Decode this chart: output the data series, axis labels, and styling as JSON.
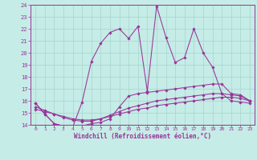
{
  "xlabel": "Windchill (Refroidissement éolien,°C)",
  "xlim": [
    -0.5,
    23.5
  ],
  "ylim": [
    14,
    24
  ],
  "xticks": [
    0,
    1,
    2,
    3,
    4,
    5,
    6,
    7,
    8,
    9,
    10,
    11,
    12,
    13,
    14,
    15,
    16,
    17,
    18,
    19,
    20,
    21,
    22,
    23
  ],
  "yticks": [
    14,
    15,
    16,
    17,
    18,
    19,
    20,
    21,
    22,
    23,
    24
  ],
  "bg_color": "#c5ece6",
  "line_color": "#993399",
  "grid_color": "#a8d4ce",
  "lines": [
    {
      "x": [
        0,
        1,
        2,
        3,
        4,
        5,
        6,
        7,
        8,
        9,
        10,
        11,
        12,
        13,
        14,
        15,
        16,
        17,
        18,
        19,
        20,
        21,
        22,
        23
      ],
      "y": [
        15.8,
        14.9,
        14.1,
        13.9,
        13.8,
        15.9,
        19.3,
        20.8,
        21.7,
        22.0,
        21.2,
        22.2,
        16.8,
        23.9,
        21.3,
        19.2,
        19.6,
        22.0,
        20.0,
        18.8,
        16.6,
        16.0,
        15.9,
        15.8
      ]
    },
    {
      "x": [
        0,
        1,
        2,
        3,
        4,
        5,
        6,
        7,
        8,
        9,
        10,
        11,
        12,
        13,
        14,
        15,
        16,
        17,
        18,
        19,
        20,
        21,
        22,
        23
      ],
      "y": [
        15.8,
        14.9,
        14.1,
        13.9,
        13.8,
        13.9,
        14.1,
        14.2,
        14.5,
        15.5,
        16.4,
        16.6,
        16.7,
        16.8,
        16.9,
        17.0,
        17.1,
        17.2,
        17.3,
        17.4,
        17.4,
        16.6,
        16.5,
        16.0
      ]
    },
    {
      "x": [
        0,
        1,
        2,
        3,
        4,
        5,
        6,
        7,
        8,
        9,
        10,
        11,
        12,
        13,
        14,
        15,
        16,
        17,
        18,
        19,
        20,
        21,
        22,
        23
      ],
      "y": [
        15.5,
        15.2,
        14.9,
        14.6,
        14.4,
        14.3,
        14.3,
        14.5,
        14.8,
        15.1,
        15.4,
        15.6,
        15.8,
        16.0,
        16.1,
        16.2,
        16.3,
        16.4,
        16.5,
        16.6,
        16.6,
        16.5,
        16.4,
        16.0
      ]
    },
    {
      "x": [
        0,
        1,
        2,
        3,
        4,
        5,
        6,
        7,
        8,
        9,
        10,
        11,
        12,
        13,
        14,
        15,
        16,
        17,
        18,
        19,
        20,
        21,
        22,
        23
      ],
      "y": [
        15.3,
        15.1,
        14.9,
        14.7,
        14.5,
        14.4,
        14.4,
        14.5,
        14.7,
        14.9,
        15.1,
        15.3,
        15.4,
        15.6,
        15.7,
        15.8,
        15.9,
        16.0,
        16.1,
        16.2,
        16.3,
        16.3,
        16.2,
        16.0
      ]
    }
  ]
}
